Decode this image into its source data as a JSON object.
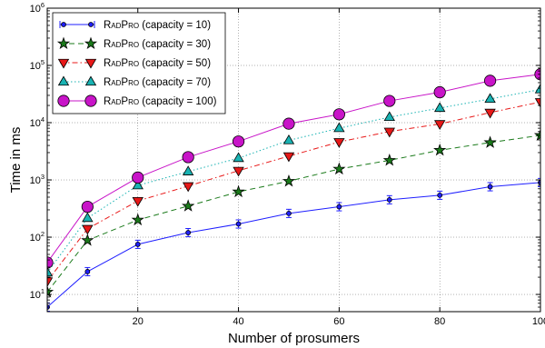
{
  "chart_data": {
    "type": "line",
    "xlabel": "Number of prosumers",
    "ylabel": "Time in ms",
    "x_scale": "linear",
    "y_scale": "log",
    "xlim": [
      2,
      100
    ],
    "ylim": [
      5,
      1000000
    ],
    "x_ticks": [
      20,
      40,
      60,
      80,
      100
    ],
    "y_ticks": [
      10,
      100,
      1000,
      10000,
      100000,
      1000000
    ],
    "y_tick_labels": [
      {
        "base": "10",
        "exp": "1"
      },
      {
        "base": "10",
        "exp": "2"
      },
      {
        "base": "10",
        "exp": "3"
      },
      {
        "base": "10",
        "exp": "4"
      },
      {
        "base": "10",
        "exp": "5"
      },
      {
        "base": "10",
        "exp": "6"
      }
    ],
    "grid": true,
    "legend_position": "top-left",
    "x": [
      2,
      10,
      20,
      30,
      40,
      50,
      60,
      70,
      80,
      90,
      100
    ],
    "series": [
      {
        "name": "RadPro (capacity = 10)",
        "name_main": "RadPro",
        "name_suffix": " (capacity = 10)",
        "color": "#1f1fff",
        "marker": "circle",
        "dash": "",
        "values": [
          6,
          25,
          75,
          120,
          170,
          260,
          340,
          450,
          540,
          760,
          900
        ],
        "error_bars": true
      },
      {
        "name": "RadPro (capacity = 30)",
        "name_main": "RadPro",
        "name_suffix": " (capacity = 30)",
        "color": "#1a7a1a",
        "marker": "star",
        "dash": "6,4",
        "values": [
          11,
          88,
          200,
          350,
          620,
          950,
          1550,
          2200,
          3300,
          4500,
          6000
        ],
        "error_bars": false
      },
      {
        "name": "RadPro (capacity = 50)",
        "name_main": "RadPro",
        "name_suffix": " (capacity = 50)",
        "color": "#e81818",
        "marker": "triangle-down",
        "dash": "6,3,1.5,3",
        "values": [
          17,
          140,
          430,
          780,
          1450,
          2600,
          4600,
          7000,
          9500,
          15000,
          23000
        ],
        "error_bars": false
      },
      {
        "name": "RadPro (capacity = 70)",
        "name_main": "RadPro",
        "name_suffix": " (capacity = 70)",
        "color": "#19b3b3",
        "marker": "triangle-up",
        "dash": "1.5,2.5",
        "values": [
          24,
          215,
          800,
          1400,
          2400,
          4900,
          8000,
          12500,
          18000,
          26000,
          38000
        ],
        "error_bars": false
      },
      {
        "name": "RadPro (capacity = 100)",
        "name_main": "RadPro",
        "name_suffix": " (capacity = 100)",
        "color": "#c814c8",
        "marker": "circle",
        "dash": "",
        "values": [
          36,
          340,
          1100,
          2500,
          4700,
          9600,
          14000,
          24000,
          34000,
          54000,
          70000
        ],
        "error_bars": false
      }
    ]
  }
}
